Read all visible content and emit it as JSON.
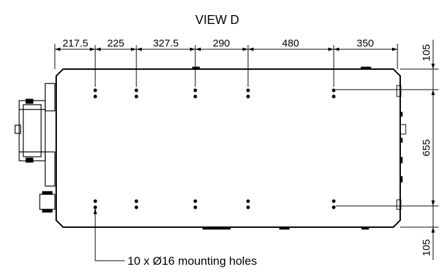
{
  "title": "VIEW D",
  "horizontal_dimensions": [
    "217.5",
    "225",
    "327.5",
    "290",
    "480",
    "350"
  ],
  "vertical_dimensions": {
    "top_offset": "105",
    "hole_spacing": "655",
    "bottom_offset": "105"
  },
  "callout": "10 x Ø16 mounting holes",
  "colors": {
    "line": "#000000",
    "background": "#ffffff"
  }
}
